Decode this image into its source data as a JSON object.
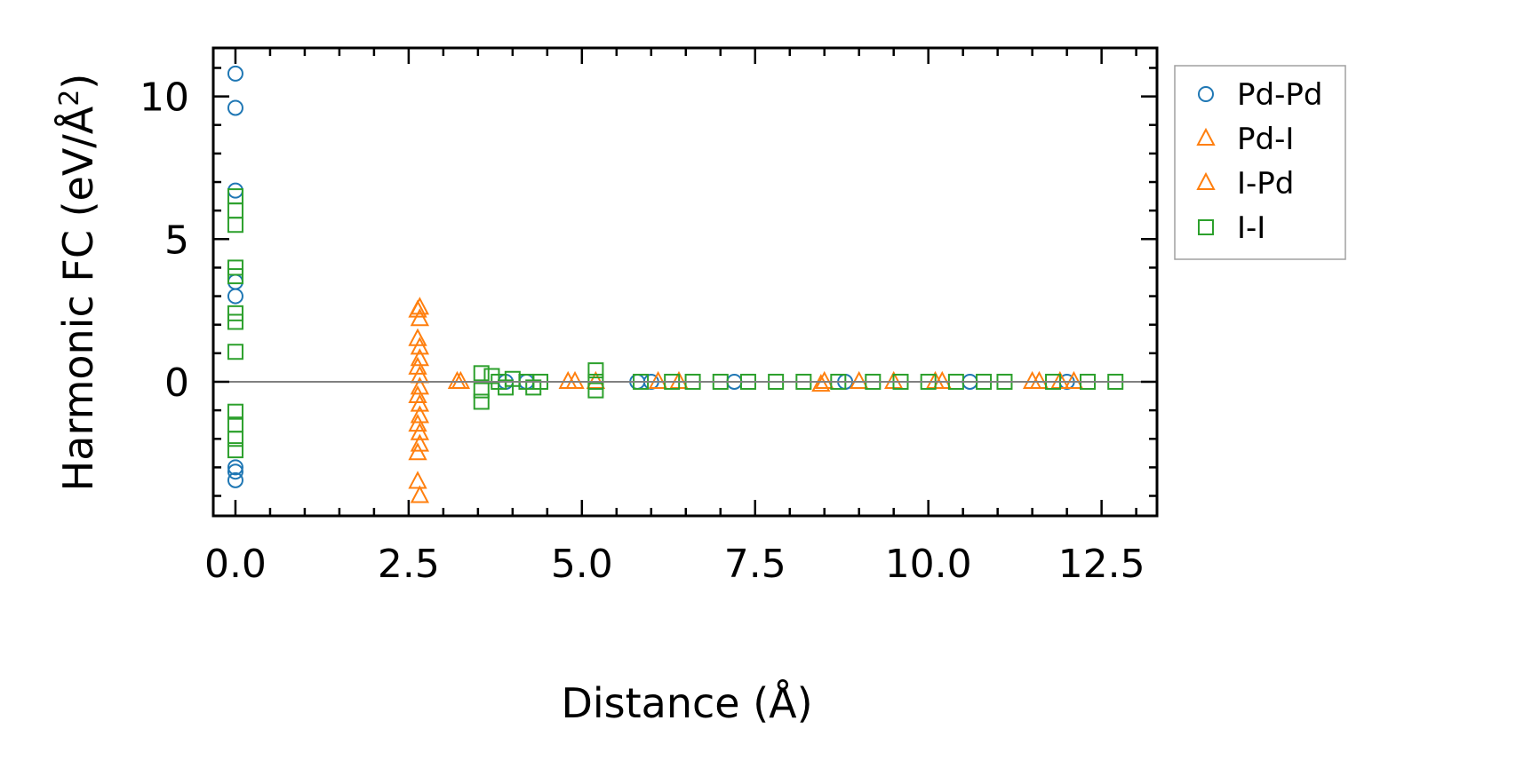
{
  "chart_data": {
    "type": "scatter",
    "xlabel": "Distance (Å)",
    "ylabel_main": "Harmonic FC (eV/Å",
    "ylabel_sup": "2",
    "ylabel_end": ")",
    "xlim": [
      -0.32,
      13.3
    ],
    "ylim": [
      -4.7,
      11.7
    ],
    "x_ticks": [
      0.0,
      2.5,
      5.0,
      7.5,
      10.0,
      12.5
    ],
    "x_tick_labels": [
      "0.0",
      "2.5",
      "5.0",
      "7.5",
      "10.0",
      "12.5"
    ],
    "y_ticks": [
      0,
      5,
      10
    ],
    "y_tick_labels": [
      "0",
      "5",
      "10"
    ],
    "zero_line": true,
    "legend_position": "outside-top-right",
    "series": [
      {
        "name": "Pd-Pd",
        "marker": "circle",
        "color": "#1f77b4",
        "points": [
          [
            0,
            10.8
          ],
          [
            0,
            9.6
          ],
          [
            0,
            6.7
          ],
          [
            0,
            3.5
          ],
          [
            0,
            3.0
          ],
          [
            0,
            -3.0
          ],
          [
            0,
            -3.15
          ],
          [
            0,
            -3.45
          ],
          [
            3.9,
            0.0
          ],
          [
            4.2,
            0.0
          ],
          [
            5.8,
            0.0
          ],
          [
            6.0,
            0.0
          ],
          [
            7.2,
            0.0
          ],
          [
            8.8,
            0.0
          ],
          [
            10.6,
            0.0
          ],
          [
            12.0,
            0.0
          ]
        ]
      },
      {
        "name": "Pd-I",
        "marker": "triangle",
        "color": "#ff7f0e",
        "points": [
          [
            2.63,
            2.5
          ],
          [
            2.63,
            1.5
          ],
          [
            2.63,
            0.5
          ],
          [
            2.63,
            -0.5
          ],
          [
            2.63,
            -1.5
          ],
          [
            2.63,
            -2.5
          ],
          [
            2.63,
            -3.5
          ],
          [
            3.2,
            0.0
          ],
          [
            4.8,
            0.0
          ],
          [
            5.2,
            0.0
          ],
          [
            6.1,
            0.0
          ],
          [
            8.5,
            0.0
          ],
          [
            9.5,
            0.0
          ],
          [
            10.2,
            0.0
          ],
          [
            11.6,
            0.0
          ],
          [
            12.1,
            0.0
          ]
        ]
      },
      {
        "name": "I-Pd",
        "marker": "triangle",
        "color": "#ff7f0e",
        "points": [
          [
            2.66,
            2.6
          ],
          [
            2.66,
            2.2
          ],
          [
            2.66,
            1.2
          ],
          [
            2.66,
            0.8
          ],
          [
            2.66,
            0.2
          ],
          [
            2.66,
            -0.2
          ],
          [
            2.66,
            -0.8
          ],
          [
            2.66,
            -1.2
          ],
          [
            2.66,
            -1.8
          ],
          [
            2.66,
            -2.2
          ],
          [
            2.66,
            -4.0
          ],
          [
            3.25,
            0.0
          ],
          [
            4.9,
            0.0
          ],
          [
            6.4,
            0.0
          ],
          [
            8.45,
            -0.1
          ],
          [
            9.0,
            0.0
          ],
          [
            10.1,
            0.0
          ],
          [
            11.5,
            0.0
          ],
          [
            11.9,
            0.0
          ]
        ]
      },
      {
        "name": "I-I",
        "marker": "square",
        "color": "#2ca02c",
        "points": [
          [
            0,
            6.5
          ],
          [
            0,
            6.0
          ],
          [
            0,
            5.5
          ],
          [
            0,
            4.0
          ],
          [
            0,
            3.7
          ],
          [
            0,
            2.4
          ],
          [
            0,
            2.1
          ],
          [
            0,
            1.05
          ],
          [
            0,
            -1.05
          ],
          [
            0,
            -1.5
          ],
          [
            0,
            -2.0
          ],
          [
            0,
            -2.4
          ],
          [
            3.55,
            0.3
          ],
          [
            3.55,
            -0.3
          ],
          [
            3.55,
            -0.7
          ],
          [
            3.7,
            0.2
          ],
          [
            3.8,
            0.0
          ],
          [
            3.9,
            -0.2
          ],
          [
            4.0,
            0.1
          ],
          [
            4.2,
            0.0
          ],
          [
            4.3,
            -0.2
          ],
          [
            4.4,
            0.0
          ],
          [
            5.2,
            0.4
          ],
          [
            5.2,
            0.0
          ],
          [
            5.2,
            -0.3
          ],
          [
            5.85,
            0.0
          ],
          [
            6.3,
            0.0
          ],
          [
            6.6,
            0.0
          ],
          [
            7.0,
            0.0
          ],
          [
            7.4,
            0.0
          ],
          [
            7.8,
            0.0
          ],
          [
            8.2,
            0.0
          ],
          [
            8.7,
            0.0
          ],
          [
            9.2,
            0.0
          ],
          [
            9.6,
            0.0
          ],
          [
            10.0,
            0.0
          ],
          [
            10.4,
            0.0
          ],
          [
            10.8,
            0.0
          ],
          [
            11.1,
            0.0
          ],
          [
            11.8,
            0.0
          ],
          [
            12.3,
            0.0
          ],
          [
            12.7,
            0.0
          ]
        ]
      }
    ]
  },
  "legend": [
    {
      "label": "Pd-Pd",
      "marker": "circle",
      "color": "#1f77b4"
    },
    {
      "label": "Pd-I",
      "marker": "triangle",
      "color": "#ff7f0e"
    },
    {
      "label": "I-Pd",
      "marker": "triangle",
      "color": "#ff7f0e"
    },
    {
      "label": "I-I",
      "marker": "square",
      "color": "#2ca02c"
    }
  ]
}
